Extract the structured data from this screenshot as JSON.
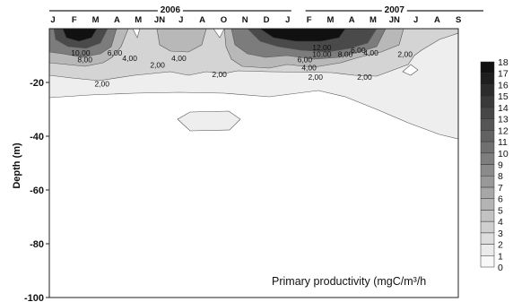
{
  "chart_data": {
    "type": "heatmap",
    "title": "",
    "ylabel": "Depth (m)",
    "annotation": "Primary productivity (mgC/m³/h",
    "years": [
      {
        "label": "2006",
        "span": [
          0,
          11
        ]
      },
      {
        "label": "2007",
        "span": [
          12,
          20
        ]
      }
    ],
    "months": [
      "J",
      "F",
      "M",
      "A",
      "M",
      "JN",
      "J",
      "A",
      "O",
      "N",
      "D",
      "J",
      "F",
      "M",
      "A",
      "M",
      "JN",
      "J",
      "A",
      "S"
    ],
    "y_ticks": [
      -20,
      -40,
      -60,
      -80,
      -100
    ],
    "ylim": [
      0,
      -100
    ],
    "colorbar": {
      "levels": [
        0,
        1,
        2,
        3,
        4,
        5,
        6,
        7,
        8,
        9,
        10,
        11,
        12,
        13,
        14,
        15,
        16,
        17,
        18
      ],
      "min": 0,
      "max": 18
    },
    "contour_labels": [
      {
        "text": "10,00",
        "month": 1.3,
        "depth": -9
      },
      {
        "text": "8,00",
        "month": 1.5,
        "depth": -11.5
      },
      {
        "text": "6,00",
        "month": 2.9,
        "depth": -9
      },
      {
        "text": "4,00",
        "month": 3.6,
        "depth": -11
      },
      {
        "text": "2,00",
        "month": 4.9,
        "depth": -13.5
      },
      {
        "text": "4,00",
        "month": 5.9,
        "depth": -11
      },
      {
        "text": "2,00",
        "month": 2.3,
        "depth": -20.5
      },
      {
        "text": "2,00",
        "month": 7.8,
        "depth": -17
      },
      {
        "text": "12,00",
        "month": 12.6,
        "depth": -7
      },
      {
        "text": "10,00",
        "month": 12.6,
        "depth": -9.5
      },
      {
        "text": "8,00",
        "month": 13.7,
        "depth": -9.5
      },
      {
        "text": "6,00",
        "month": 14.3,
        "depth": -8
      },
      {
        "text": "6,00",
        "month": 11.8,
        "depth": -11.5
      },
      {
        "text": "4,00",
        "month": 12.0,
        "depth": -14.5
      },
      {
        "text": "4,00",
        "month": 14.9,
        "depth": -9
      },
      {
        "text": "2,00",
        "month": 12.3,
        "depth": -18
      },
      {
        "text": "2,00",
        "month": 14.6,
        "depth": -18
      },
      {
        "text": "2,00",
        "month": 16.5,
        "depth": -9.5
      }
    ]
  }
}
